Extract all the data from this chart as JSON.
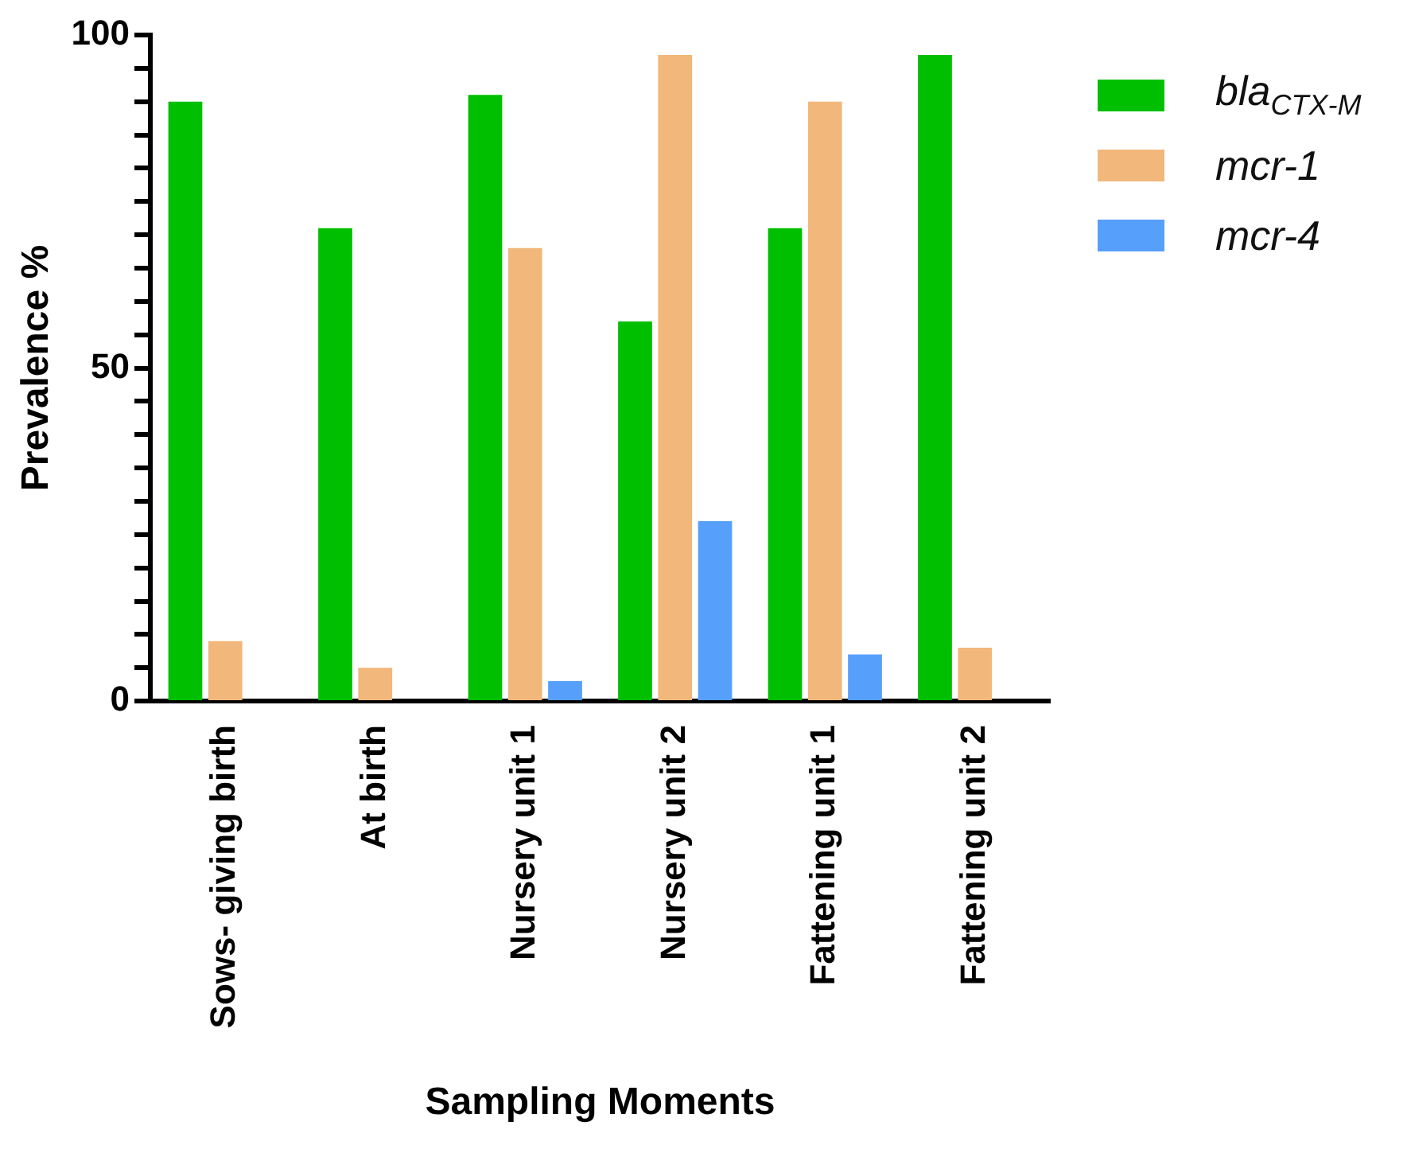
{
  "chart_data": {
    "type": "bar",
    "xlabel": "Sampling Moments",
    "ylabel": "Prevalence %",
    "categories": [
      "Sows- giving birth",
      "At birth",
      "Nursery unit 1",
      "Nursery unit 2",
      "Fattening unit 1",
      "Fattening unit 2"
    ],
    "series": [
      {
        "name": "bla$_{CTX-M}$",
        "color": "#00bf00",
        "values": [
          90,
          71,
          91,
          57,
          71,
          97
        ]
      },
      {
        "name": "mcr-1",
        "color": "#f2b77b",
        "values": [
          9,
          5,
          68,
          97,
          90,
          8
        ]
      },
      {
        "name": "mcr-4",
        "color": "#569ffb",
        "values": [
          0,
          0,
          3,
          27,
          7,
          0
        ]
      }
    ],
    "ylim": [
      0,
      100
    ],
    "yticks": [
      0,
      {
        "value": 5,
        "label": null
      },
      {
        "value": 10,
        "label": null
      },
      {
        "value": 15,
        "label": null
      },
      {
        "value": 20,
        "label": null
      },
      {
        "value": 25,
        "label": null
      },
      {
        "value": 30,
        "label": null
      },
      {
        "value": 35,
        "label": null
      },
      {
        "value": 40,
        "label": null
      },
      {
        "value": 45,
        "label": null
      },
      50,
      {
        "value": 55,
        "label": null
      },
      {
        "value": 60,
        "label": null
      },
      {
        "value": 65,
        "label": null
      },
      {
        "value": 70,
        "label": null
      },
      {
        "value": 75,
        "label": null
      },
      {
        "value": 80,
        "label": null
      },
      {
        "value": 85,
        "label": null
      },
      {
        "value": 90,
        "label": null
      },
      {
        "value": 95,
        "label": null
      },
      100
    ],
    "grid": false,
    "legend": "top right"
  }
}
